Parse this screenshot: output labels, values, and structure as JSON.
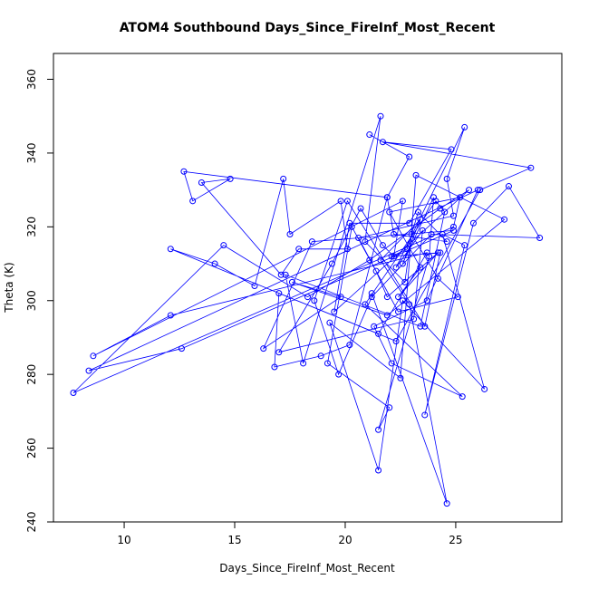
{
  "chart_data": {
    "type": "line",
    "title": "ATOM4 Southbound Days_Since_FireInf_Most_Recent",
    "xlabel": "Days_Since_FireInf_Most_Recent",
    "ylabel": "Theta (K)",
    "xlim": [
      6.8,
      29.8
    ],
    "ylim": [
      240,
      367
    ],
    "xticks": [
      10,
      15,
      20,
      25
    ],
    "yticks": [
      240,
      260,
      280,
      300,
      320,
      340,
      360
    ],
    "grid": false,
    "series_color": "#0000ff",
    "marker": "open-circle",
    "series": [
      {
        "x": [
          21.1,
          22.9,
          21.9,
          12.7,
          13.1,
          14.8,
          13.5,
          17.1,
          17.9,
          20.1,
          19.8,
          17.5,
          17.2,
          15.9,
          14.1,
          12.1,
          21.5,
          23.7,
          12.1,
          8.6,
          22.6,
          22.2,
          21.7,
          20.7,
          19.4,
          17.0,
          23.1,
          23.5,
          22.3,
          25.4,
          24.6,
          24.9,
          20.6,
          21.4,
          21.9,
          24.2,
          22.4,
          23.4,
          22.0,
          25.2,
          24.9,
          7.7,
          14.5,
          18.3,
          21.1,
          24.3,
          25.6,
          19.5,
          20.2,
          22.9,
          24.8,
          21.7,
          28.4,
          26.1,
          22.3,
          17.0,
          16.8,
          18.9,
          20.2,
          21.9,
          22.2,
          24.6,
          23.3,
          22.8,
          22.1,
          24.3,
          23.6,
          20.1,
          18.6,
          19.7,
          21.2,
          23.9,
          28.8,
          27.4,
          25.8,
          23.6,
          25.4,
          24.4,
          26.3,
          22.6,
          21.5,
          19.3,
          22.5,
          23.2,
          27.2,
          21.9,
          17.6,
          19.8,
          16.3,
          18.5,
          24.9,
          12.6,
          8.4,
          26.0,
          23.7,
          21.3,
          22.1,
          25.3,
          20.9,
          24.1,
          24.5,
          23.4,
          17.3,
          18.1,
          21.6,
          20.9,
          22.7,
          23.0,
          24.2,
          25.1,
          22.4,
          20.3,
          19.2,
          22.0,
          21.5,
          23.8,
          24.0,
          22.6,
          23.4,
          21.6,
          22.9,
          24.6,
          21.2
        ],
        "y": [
          345,
          339,
          328,
          335,
          327,
          333,
          332,
          307,
          314,
          314,
          327,
          318,
          333,
          304,
          310,
          314,
          291,
          313,
          296,
          285,
          327,
          312,
          315,
          325,
          310,
          286,
          295,
          319,
          309,
          347,
          333,
          323,
          317,
          308,
          301,
          313,
          301,
          309,
          324,
          328,
          320,
          275,
          315,
          301,
          311,
          325,
          330,
          297,
          321,
          321,
          341,
          343,
          336,
          330,
          289,
          302,
          282,
          285,
          288,
          328,
          318,
          316,
          324,
          314,
          312,
          313,
          293,
          327,
          300,
          280,
          301,
          318,
          317,
          331,
          321,
          269,
          315,
          318,
          276,
          300,
          254,
          294,
          279,
          334,
          322,
          296,
          305,
          301,
          287,
          316,
          319,
          287,
          281,
          330,
          300,
          293,
          283,
          274,
          299,
          327,
          324,
          293,
          307,
          283,
          350,
          316,
          305,
          318,
          306,
          301,
          297,
          320,
          283,
          271,
          265,
          312,
          328,
          310,
          322,
          311,
          299,
          245,
          302
        ]
      }
    ]
  }
}
